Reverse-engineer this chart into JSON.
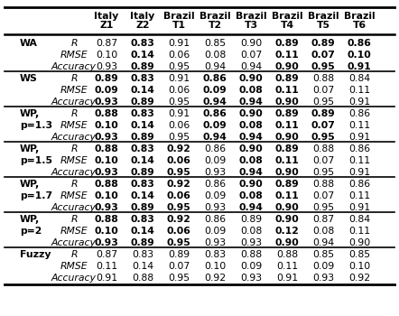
{
  "col_headers_line1": [
    "Italy",
    "Italy",
    "Brazil",
    "Brazil",
    "Brazil",
    "Brazil",
    "Brazil",
    "Brazil"
  ],
  "col_headers_line2": [
    "Z1",
    "Z2",
    "T1",
    "T2",
    "T3",
    "T4",
    "T5",
    "T6"
  ],
  "rows": [
    {
      "group": "WA",
      "group2": "",
      "metric": "R",
      "values": [
        "0.87",
        "0.83",
        "0.91",
        "0.85",
        "0.90",
        "0.89",
        "0.89",
        "0.86"
      ],
      "bold": [
        false,
        true,
        false,
        false,
        false,
        true,
        true,
        true
      ]
    },
    {
      "group": "",
      "group2": "",
      "metric": "RMSE",
      "values": [
        "0.10",
        "0.14",
        "0.06",
        "0.08",
        "0.07",
        "0.11",
        "0.07",
        "0.10"
      ],
      "bold": [
        false,
        true,
        false,
        false,
        false,
        true,
        true,
        true
      ]
    },
    {
      "group": "",
      "group2": "",
      "metric": "Accuracy",
      "values": [
        "0.93",
        "0.89",
        "0.95",
        "0.94",
        "0.94",
        "0.90",
        "0.95",
        "0.91"
      ],
      "bold": [
        false,
        true,
        false,
        false,
        false,
        true,
        true,
        true
      ]
    },
    {
      "group": "WS",
      "group2": "",
      "metric": "R",
      "values": [
        "0.89",
        "0.83",
        "0.91",
        "0.86",
        "0.90",
        "0.89",
        "0.88",
        "0.84"
      ],
      "bold": [
        true,
        true,
        false,
        true,
        true,
        true,
        false,
        false
      ]
    },
    {
      "group": "",
      "group2": "",
      "metric": "RMSE",
      "values": [
        "0.09",
        "0.14",
        "0.06",
        "0.09",
        "0.08",
        "0.11",
        "0.07",
        "0.11"
      ],
      "bold": [
        true,
        true,
        false,
        true,
        true,
        true,
        false,
        false
      ]
    },
    {
      "group": "",
      "group2": "",
      "metric": "Accuracy",
      "values": [
        "0.93",
        "0.89",
        "0.95",
        "0.94",
        "0.94",
        "0.90",
        "0.95",
        "0.91"
      ],
      "bold": [
        true,
        true,
        false,
        true,
        true,
        true,
        false,
        false
      ]
    },
    {
      "group": "WP,",
      "group2": "p=1.3",
      "metric": "R",
      "values": [
        "0.88",
        "0.83",
        "0.91",
        "0.86",
        "0.90",
        "0.89",
        "0.89",
        "0.86"
      ],
      "bold": [
        true,
        true,
        false,
        true,
        true,
        true,
        true,
        false
      ]
    },
    {
      "group": "",
      "group2": "",
      "metric": "RMSE",
      "values": [
        "0.10",
        "0.14",
        "0.06",
        "0.09",
        "0.08",
        "0.11",
        "0.07",
        "0.11"
      ],
      "bold": [
        true,
        true,
        false,
        true,
        true,
        true,
        true,
        false
      ]
    },
    {
      "group": "",
      "group2": "",
      "metric": "Accuracy",
      "values": [
        "0.93",
        "0.89",
        "0.95",
        "0.94",
        "0.94",
        "0.90",
        "0.95",
        "0.91"
      ],
      "bold": [
        true,
        true,
        false,
        true,
        true,
        true,
        true,
        false
      ]
    },
    {
      "group": "WP,",
      "group2": "p=1.5",
      "metric": "R",
      "values": [
        "0.88",
        "0.83",
        "0.92",
        "0.86",
        "0.90",
        "0.89",
        "0.88",
        "0.86"
      ],
      "bold": [
        true,
        true,
        true,
        false,
        true,
        true,
        false,
        false
      ]
    },
    {
      "group": "",
      "group2": "",
      "metric": "RMSE",
      "values": [
        "0.10",
        "0.14",
        "0.06",
        "0.09",
        "0.08",
        "0.11",
        "0.07",
        "0.11"
      ],
      "bold": [
        true,
        true,
        true,
        false,
        true,
        true,
        false,
        false
      ]
    },
    {
      "group": "",
      "group2": "",
      "metric": "Accuracy",
      "values": [
        "0.93",
        "0.89",
        "0.95",
        "0.93",
        "0.94",
        "0.90",
        "0.95",
        "0.91"
      ],
      "bold": [
        true,
        true,
        true,
        false,
        true,
        true,
        false,
        false
      ]
    },
    {
      "group": "WP,",
      "group2": "p=1.7",
      "metric": "R",
      "values": [
        "0.88",
        "0.83",
        "0.92",
        "0.86",
        "0.90",
        "0.89",
        "0.88",
        "0.86"
      ],
      "bold": [
        true,
        true,
        true,
        false,
        true,
        true,
        false,
        false
      ]
    },
    {
      "group": "",
      "group2": "",
      "metric": "RMSE",
      "values": [
        "0.10",
        "0.14",
        "0.06",
        "0.09",
        "0.08",
        "0.11",
        "0.07",
        "0.11"
      ],
      "bold": [
        true,
        true,
        true,
        false,
        true,
        true,
        false,
        false
      ]
    },
    {
      "group": "",
      "group2": "",
      "metric": "Accuracy",
      "values": [
        "0.93",
        "0.89",
        "0.95",
        "0.93",
        "0.94",
        "0.90",
        "0.95",
        "0.91"
      ],
      "bold": [
        true,
        true,
        true,
        false,
        true,
        true,
        false,
        false
      ]
    },
    {
      "group": "WP,",
      "group2": "p=2",
      "metric": "R",
      "values": [
        "0.88",
        "0.83",
        "0.92",
        "0.86",
        "0.89",
        "0.90",
        "0.87",
        "0.84"
      ],
      "bold": [
        true,
        true,
        true,
        false,
        false,
        true,
        false,
        false
      ]
    },
    {
      "group": "",
      "group2": "",
      "metric": "RMSE",
      "values": [
        "0.10",
        "0.14",
        "0.06",
        "0.09",
        "0.08",
        "0.12",
        "0.08",
        "0.11"
      ],
      "bold": [
        true,
        true,
        true,
        false,
        false,
        true,
        false,
        false
      ]
    },
    {
      "group": "",
      "group2": "",
      "metric": "Accuracy",
      "values": [
        "0.93",
        "0.89",
        "0.95",
        "0.93",
        "0.93",
        "0.90",
        "0.94",
        "0.90"
      ],
      "bold": [
        true,
        true,
        true,
        false,
        false,
        true,
        false,
        false
      ]
    },
    {
      "group": "Fuzzy",
      "group2": "",
      "metric": "R",
      "values": [
        "0.87",
        "0.83",
        "0.89",
        "0.83",
        "0.88",
        "0.88",
        "0.85",
        "0.85"
      ],
      "bold": [
        false,
        false,
        false,
        false,
        false,
        false,
        false,
        false
      ]
    },
    {
      "group": "",
      "group2": "",
      "metric": "RMSE",
      "values": [
        "0.11",
        "0.14",
        "0.07",
        "0.10",
        "0.09",
        "0.11",
        "0.09",
        "0.10"
      ],
      "bold": [
        false,
        false,
        false,
        false,
        false,
        false,
        false,
        false
      ]
    },
    {
      "group": "",
      "group2": "",
      "metric": "Accuracy",
      "values": [
        "0.91",
        "0.88",
        "0.95",
        "0.92",
        "0.93",
        "0.91",
        "0.93",
        "0.92"
      ],
      "bold": [
        false,
        false,
        false,
        false,
        false,
        false,
        false,
        false
      ]
    }
  ],
  "group_bold": [
    "WA",
    "WS",
    "WP,",
    "p=1.3",
    "p=1.5",
    "p=1.7",
    "p=2",
    "Fuzzy"
  ],
  "group_separators_before_rows": [
    3,
    6,
    9,
    12,
    15,
    18
  ],
  "background_color": "#ffffff",
  "text_color": "#000000",
  "fontsize": 7.8
}
